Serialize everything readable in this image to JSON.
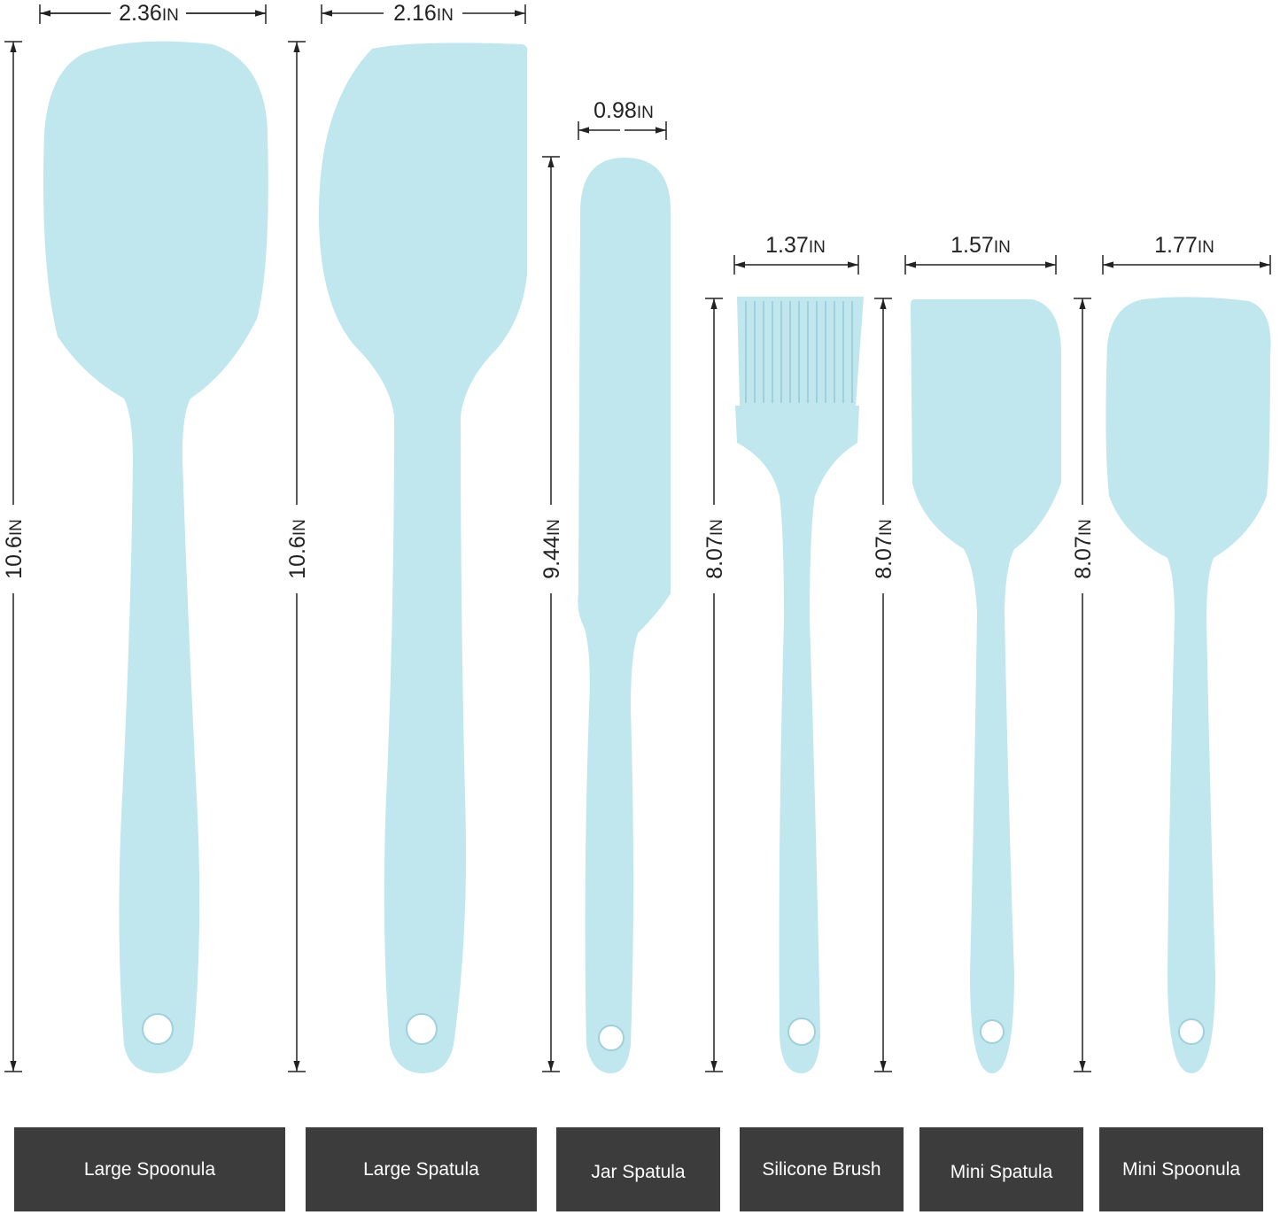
{
  "colors": {
    "utensil": "#c0e6ee",
    "label_bg": "#3c3c3c",
    "label_text": "#ffffff",
    "dimension_line": "#222222"
  },
  "unit": "IN",
  "utensils": [
    {
      "name": "Large Spoonula",
      "width": "2.36",
      "height": "10.6"
    },
    {
      "name": "Large Spatula",
      "width": "2.16",
      "height": "10.6"
    },
    {
      "name": "Jar Spatula",
      "width": "0.98",
      "height": "9.44"
    },
    {
      "name": "Silicone Brush",
      "width": "1.37",
      "height": "8.07"
    },
    {
      "name": "Mini Spatula",
      "width": "1.57",
      "height": "8.07"
    },
    {
      "name": "Mini Spoonula",
      "width": "1.77",
      "height": "8.07"
    }
  ]
}
